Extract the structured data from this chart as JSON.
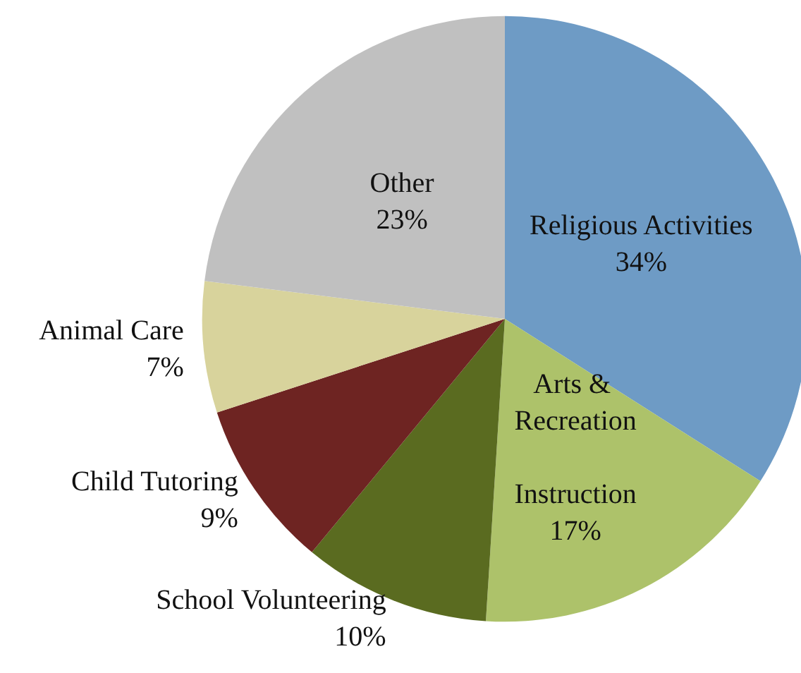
{
  "chart_data": {
    "type": "pie",
    "categories": [
      "Religious Activities",
      "Arts & Recreation Instruction",
      "School Volunteering",
      "Child Tutoring",
      "Animal Care",
      "Other"
    ],
    "values": [
      34,
      17,
      10,
      9,
      7,
      23
    ],
    "colors": [
      "#6e9bc5",
      "#adc26a",
      "#5a6b20",
      "#6e2422",
      "#d8d39c",
      "#c0c0c0"
    ],
    "value_labels": [
      "34%",
      "17%",
      "10%",
      "9%",
      "7%",
      "23%"
    ],
    "legend": false
  }
}
